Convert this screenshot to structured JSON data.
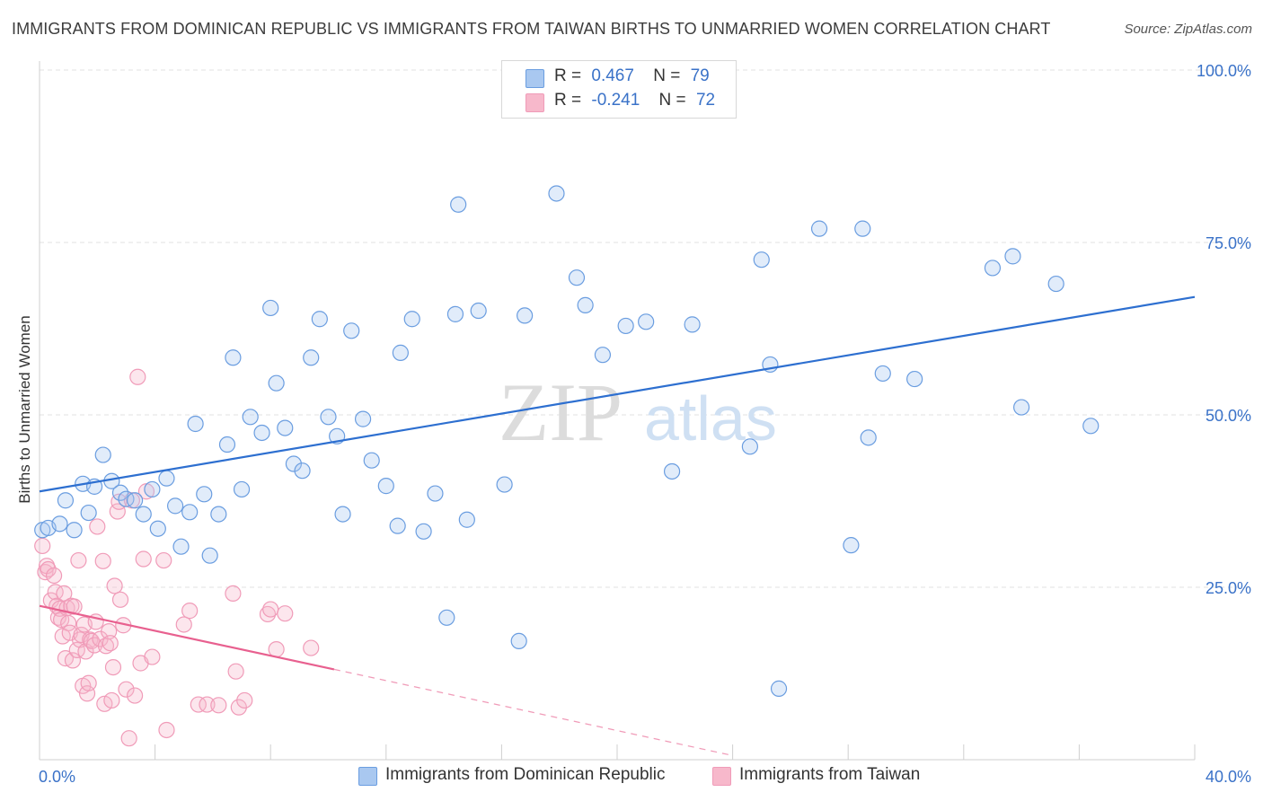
{
  "title": "IMMIGRANTS FROM DOMINICAN REPUBLIC VS IMMIGRANTS FROM TAIWAN BIRTHS TO UNMARRIED WOMEN CORRELATION CHART",
  "source": "Source: ZipAtlas.com",
  "watermark": {
    "zip": "ZIP",
    "atlas": "atlas"
  },
  "legend": {
    "rows": [
      {
        "r_label": "R =",
        "r_value": "0.467",
        "n_label": "N =",
        "n_value": "79",
        "color": "#a9c8f0"
      },
      {
        "r_label": "R =",
        "r_value": "-0.241",
        "n_label": "N =",
        "n_value": "72",
        "color": "#f7b8cb"
      }
    ]
  },
  "bottom_legend": [
    {
      "label": "Immigrants from Dominican Republic",
      "color": "#a9c8f0"
    },
    {
      "label": "Immigrants from Taiwan",
      "color": "#f7b8cb"
    }
  ],
  "chart_data": {
    "type": "scatter",
    "title": "IMMIGRANTS FROM DOMINICAN REPUBLIC VS IMMIGRANTS FROM TAIWAN BIRTHS TO UNMARRIED WOMEN CORRELATION CHART",
    "xlabel": "",
    "ylabel": "Births to Unmarried Women",
    "xlim": [
      0,
      40
    ],
    "ylim": [
      0,
      100
    ],
    "x_tick_labels": [
      "0.0%",
      "40.0%"
    ],
    "y_tick_labels": [
      "25.0%",
      "50.0%",
      "75.0%",
      "100.0%"
    ],
    "y_ticks": [
      25,
      50,
      75,
      100
    ],
    "grid": true,
    "legend_position": "top-center",
    "series": [
      {
        "name": "Immigrants from Dominican Republic",
        "color": "#6a9de0",
        "trend": {
          "x": [
            0,
            40
          ],
          "y": [
            38.9,
            67.1
          ],
          "color": "#2d6fd0"
        },
        "points": [
          [
            0.1,
            33.3
          ],
          [
            0.3,
            33.6
          ],
          [
            0.7,
            34.2
          ],
          [
            0.9,
            37.6
          ],
          [
            1.2,
            33.3
          ],
          [
            1.5,
            40.0
          ],
          [
            1.7,
            35.8
          ],
          [
            1.9,
            39.6
          ],
          [
            2.2,
            44.2
          ],
          [
            2.5,
            40.4
          ],
          [
            2.8,
            38.7
          ],
          [
            3.0,
            37.8
          ],
          [
            3.3,
            37.6
          ],
          [
            3.6,
            35.6
          ],
          [
            3.9,
            39.2
          ],
          [
            4.1,
            33.5
          ],
          [
            4.4,
            40.8
          ],
          [
            4.7,
            36.8
          ],
          [
            4.9,
            30.9
          ],
          [
            5.2,
            35.9
          ],
          [
            5.4,
            48.7
          ],
          [
            5.7,
            38.5
          ],
          [
            5.9,
            29.6
          ],
          [
            6.2,
            35.6
          ],
          [
            6.5,
            45.7
          ],
          [
            6.7,
            58.3
          ],
          [
            7.0,
            39.2
          ],
          [
            7.3,
            49.7
          ],
          [
            7.7,
            47.4
          ],
          [
            8.0,
            65.5
          ],
          [
            8.2,
            54.6
          ],
          [
            8.5,
            48.1
          ],
          [
            8.8,
            42.9
          ],
          [
            9.1,
            41.9
          ],
          [
            9.4,
            58.3
          ],
          [
            9.7,
            63.9
          ],
          [
            10.0,
            49.7
          ],
          [
            10.3,
            46.9
          ],
          [
            10.5,
            35.6
          ],
          [
            10.8,
            62.2
          ],
          [
            11.2,
            49.4
          ],
          [
            11.5,
            43.4
          ],
          [
            12.0,
            39.7
          ],
          [
            12.4,
            33.9
          ],
          [
            12.5,
            59.0
          ],
          [
            12.9,
            63.9
          ],
          [
            13.3,
            33.1
          ],
          [
            13.7,
            38.6
          ],
          [
            14.1,
            20.6
          ],
          [
            14.4,
            64.6
          ],
          [
            14.5,
            80.5
          ],
          [
            14.8,
            34.8
          ],
          [
            15.2,
            65.1
          ],
          [
            16.1,
            39.9
          ],
          [
            16.6,
            17.2
          ],
          [
            16.8,
            64.4
          ],
          [
            17.9,
            82.1
          ],
          [
            18.6,
            69.9
          ],
          [
            18.9,
            65.9
          ],
          [
            19.5,
            58.7
          ],
          [
            20.3,
            62.9
          ],
          [
            21.0,
            63.5
          ],
          [
            21.9,
            41.8
          ],
          [
            22.6,
            63.1
          ],
          [
            24.6,
            45.4
          ],
          [
            25.0,
            72.5
          ],
          [
            25.3,
            57.3
          ],
          [
            25.6,
            10.3
          ],
          [
            27.0,
            77.0
          ],
          [
            28.1,
            31.1
          ],
          [
            28.5,
            77.0
          ],
          [
            28.7,
            46.7
          ],
          [
            29.2,
            56.0
          ],
          [
            30.3,
            55.2
          ],
          [
            33.0,
            71.3
          ],
          [
            33.7,
            73.0
          ],
          [
            34.0,
            51.1
          ],
          [
            35.2,
            69.0
          ],
          [
            36.4,
            48.4
          ]
        ]
      },
      {
        "name": "Immigrants from Taiwan",
        "color": "#f09bb8",
        "trend": {
          "x": [
            0,
            10.2
          ],
          "y": [
            22.3,
            13.1
          ],
          "dashed_to": [
            24.0,
            0.6
          ],
          "color": "#e8608f"
        },
        "points": [
          [
            0.1,
            31.0
          ],
          [
            0.2,
            27.2
          ],
          [
            0.25,
            28.1
          ],
          [
            0.3,
            27.6
          ],
          [
            0.4,
            23.1
          ],
          [
            0.5,
            26.7
          ],
          [
            0.55,
            24.3
          ],
          [
            0.6,
            22.3
          ],
          [
            0.65,
            20.6
          ],
          [
            0.7,
            21.9
          ],
          [
            0.75,
            20.3
          ],
          [
            0.8,
            17.9
          ],
          [
            0.85,
            24.1
          ],
          [
            0.9,
            14.7
          ],
          [
            0.95,
            22.0
          ],
          [
            1.0,
            19.8
          ],
          [
            1.05,
            18.4
          ],
          [
            1.1,
            22.3
          ],
          [
            1.15,
            14.4
          ],
          [
            1.2,
            22.2
          ],
          [
            1.3,
            15.9
          ],
          [
            1.35,
            28.9
          ],
          [
            1.4,
            17.4
          ],
          [
            1.45,
            18.1
          ],
          [
            1.5,
            10.7
          ],
          [
            1.55,
            19.6
          ],
          [
            1.6,
            15.7
          ],
          [
            1.65,
            9.6
          ],
          [
            1.7,
            11.1
          ],
          [
            1.75,
            17.4
          ],
          [
            1.8,
            17.2
          ],
          [
            1.9,
            16.6
          ],
          [
            1.95,
            20.0
          ],
          [
            2.0,
            33.8
          ],
          [
            2.1,
            17.5
          ],
          [
            2.2,
            28.8
          ],
          [
            2.25,
            8.1
          ],
          [
            2.3,
            16.5
          ],
          [
            2.4,
            18.6
          ],
          [
            2.45,
            16.9
          ],
          [
            2.5,
            8.6
          ],
          [
            2.55,
            13.4
          ],
          [
            2.6,
            25.2
          ],
          [
            2.7,
            36.0
          ],
          [
            2.75,
            37.4
          ],
          [
            2.8,
            23.2
          ],
          [
            2.9,
            19.5
          ],
          [
            3.0,
            10.2
          ],
          [
            3.1,
            3.1
          ],
          [
            3.2,
            37.6
          ],
          [
            3.3,
            9.3
          ],
          [
            3.4,
            55.5
          ],
          [
            3.5,
            14.0
          ],
          [
            3.6,
            29.1
          ],
          [
            3.7,
            38.9
          ],
          [
            3.9,
            14.9
          ],
          [
            4.3,
            28.9
          ],
          [
            4.4,
            4.3
          ],
          [
            5.0,
            19.6
          ],
          [
            5.2,
            21.6
          ],
          [
            5.5,
            8.0
          ],
          [
            5.8,
            8.0
          ],
          [
            6.2,
            7.9
          ],
          [
            6.7,
            24.1
          ],
          [
            6.8,
            12.8
          ],
          [
            6.9,
            7.6
          ],
          [
            7.1,
            8.6
          ],
          [
            7.9,
            21.1
          ],
          [
            8.0,
            21.8
          ],
          [
            8.2,
            16.0
          ],
          [
            8.5,
            21.2
          ],
          [
            9.4,
            16.2
          ]
        ]
      }
    ]
  }
}
